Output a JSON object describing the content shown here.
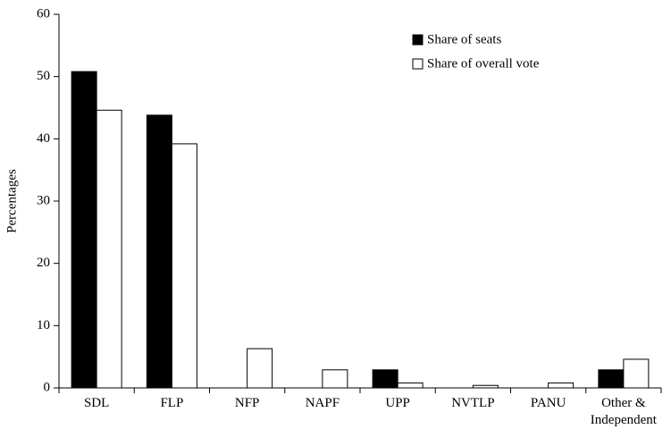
{
  "chart_data": {
    "type": "bar",
    "y_label": "Percentages",
    "categories": [
      "SDL",
      "FLP",
      "NFP",
      "NAPF",
      "UPP",
      "NVTLP",
      "PANU",
      "Other & Independent"
    ],
    "series": [
      {
        "name": "Share of seats",
        "color": "#000000",
        "values": [
          50.8,
          43.8,
          0,
          0,
          2.9,
          0,
          0,
          2.9
        ]
      },
      {
        "name": "Share of overall vote",
        "color": "#ffffff",
        "values": [
          44.6,
          39.2,
          6.3,
          2.9,
          0.8,
          0.4,
          0.8,
          4.6
        ]
      }
    ],
    "ylim": [
      0,
      60
    ],
    "yticks": [
      0,
      10,
      20,
      30,
      40,
      50,
      60
    ],
    "grid": false,
    "legend": "upper right"
  }
}
